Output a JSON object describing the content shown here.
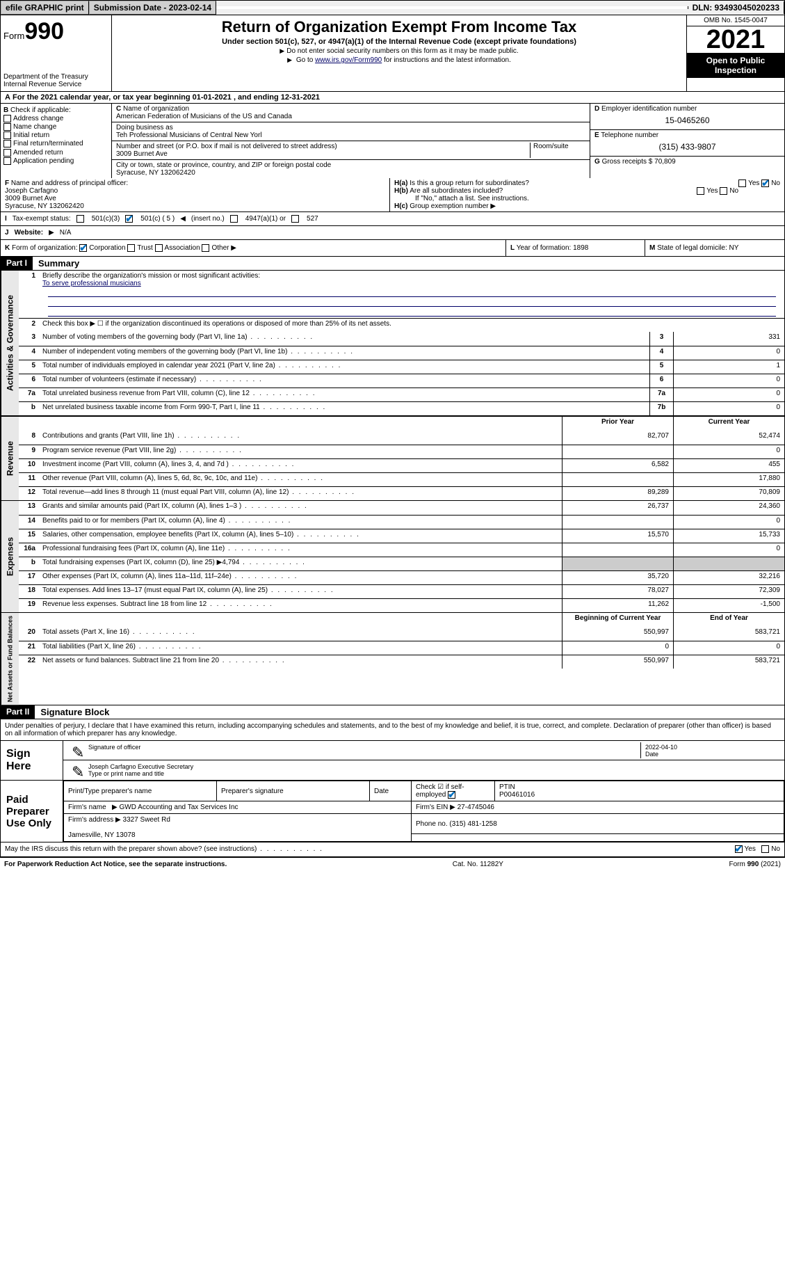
{
  "topbar": {
    "efile": "efile GRAPHIC print",
    "submission_label": "Submission Date - 2023-02-14",
    "dln": "DLN: 93493045020233"
  },
  "header": {
    "form_label": "Form",
    "form_num": "990",
    "title": "Return of Organization Exempt From Income Tax",
    "subtitle": "Under section 501(c), 527, or 4947(a)(1) of the Internal Revenue Code (except private foundations)",
    "note1": "Do not enter social security numbers on this form as it may be made public.",
    "note2_pre": "Go to ",
    "note2_link": "www.irs.gov/Form990",
    "note2_post": " for instructions and the latest information.",
    "dept": "Department of the Treasury",
    "irs": "Internal Revenue Service",
    "omb": "OMB No. 1545-0047",
    "year": "2021",
    "open": "Open to Public Inspection"
  },
  "lineA": "For the 2021 calendar year, or tax year beginning 01-01-2021   , and ending 12-31-2021",
  "checkB": {
    "label": "Check if applicable:",
    "items": [
      "Address change",
      "Name change",
      "Initial return",
      "Final return/terminated",
      "Amended return",
      "Application pending"
    ]
  },
  "org": {
    "name_label": "Name of organization",
    "name": "American Federation of Musicians of the US and Canada",
    "dba_label": "Doing business as",
    "dba": "Teh Professional Musicians of Central New Yorl",
    "addr_label": "Number and street (or P.O. box if mail is not delivered to street address)",
    "room_label": "Room/suite",
    "addr": "3009 Burnet Ave",
    "city_label": "City or town, state or province, country, and ZIP or foreign postal code",
    "city": "Syracuse, NY  132062420"
  },
  "colD": {
    "ein_label": "Employer identification number",
    "ein": "15-0465260",
    "tel_label": "Telephone number",
    "tel": "(315) 433-9807",
    "gross_label": "Gross receipts $",
    "gross": "70,809"
  },
  "rowF": {
    "label": "Name and address of principal officer:",
    "name": "Joseph Carfagno",
    "addr": "3009 Burnet Ave",
    "city": "Syracuse, NY  132062420"
  },
  "rowH": {
    "a": "Is this a group return for subordinates?",
    "b": "Are all subordinates included?",
    "b_note": "If \"No,\" attach a list. See instructions.",
    "c": "Group exemption number"
  },
  "rowI": {
    "label": "Tax-exempt status:",
    "opts": [
      "501(c)(3)",
      "501(c) ( 5 )",
      "(insert no.)",
      "4947(a)(1) or",
      "527"
    ]
  },
  "rowJ": {
    "label": "Website:",
    "val": "N/A"
  },
  "rowK": {
    "label": "Form of organization:",
    "opts": [
      "Corporation",
      "Trust",
      "Association",
      "Other"
    ]
  },
  "rowL": {
    "label": "Year of formation:",
    "val": "1898"
  },
  "rowM": {
    "label": "State of legal domicile:",
    "val": "NY"
  },
  "part1": {
    "hdr": "Part I",
    "title": "Summary",
    "q1": "Briefly describe the organization's mission or most significant activities:",
    "mission": "To serve professional musicians",
    "q2": "Check this box ▶ ☐  if the organization discontinued its operations or disposed of more than 25% of its net assets.",
    "lines_gov": [
      {
        "n": "3",
        "t": "Number of voting members of the governing body (Part VI, line 1a)",
        "box": "3",
        "v": "331"
      },
      {
        "n": "4",
        "t": "Number of independent voting members of the governing body (Part VI, line 1b)",
        "box": "4",
        "v": "0"
      },
      {
        "n": "5",
        "t": "Total number of individuals employed in calendar year 2021 (Part V, line 2a)",
        "box": "5",
        "v": "1"
      },
      {
        "n": "6",
        "t": "Total number of volunteers (estimate if necessary)",
        "box": "6",
        "v": "0"
      },
      {
        "n": "7a",
        "t": "Total unrelated business revenue from Part VIII, column (C), line 12",
        "box": "7a",
        "v": "0"
      },
      {
        "n": "b",
        "t": "Net unrelated business taxable income from Form 990-T, Part I, line 11",
        "box": "7b",
        "v": "0"
      }
    ],
    "col_prior": "Prior Year",
    "col_curr": "Current Year",
    "lines_rev": [
      {
        "n": "8",
        "t": "Contributions and grants (Part VIII, line 1h)",
        "p": "82,707",
        "c": "52,474"
      },
      {
        "n": "9",
        "t": "Program service revenue (Part VIII, line 2g)",
        "p": "",
        "c": "0"
      },
      {
        "n": "10",
        "t": "Investment income (Part VIII, column (A), lines 3, 4, and 7d )",
        "p": "6,582",
        "c": "455"
      },
      {
        "n": "11",
        "t": "Other revenue (Part VIII, column (A), lines 5, 6d, 8c, 9c, 10c, and 11e)",
        "p": "",
        "c": "17,880"
      },
      {
        "n": "12",
        "t": "Total revenue—add lines 8 through 11 (must equal Part VIII, column (A), line 12)",
        "p": "89,289",
        "c": "70,809"
      }
    ],
    "lines_exp": [
      {
        "n": "13",
        "t": "Grants and similar amounts paid (Part IX, column (A), lines 1–3 )",
        "p": "26,737",
        "c": "24,360"
      },
      {
        "n": "14",
        "t": "Benefits paid to or for members (Part IX, column (A), line 4)",
        "p": "",
        "c": "0"
      },
      {
        "n": "15",
        "t": "Salaries, other compensation, employee benefits (Part IX, column (A), lines 5–10)",
        "p": "15,570",
        "c": "15,733"
      },
      {
        "n": "16a",
        "t": "Professional fundraising fees (Part IX, column (A), line 11e)",
        "p": "",
        "c": "0"
      },
      {
        "n": "b",
        "t": "Total fundraising expenses (Part IX, column (D), line 25) ▶4,794",
        "p": "__shade__",
        "c": "__shade__"
      },
      {
        "n": "17",
        "t": "Other expenses (Part IX, column (A), lines 11a–11d, 11f–24e)",
        "p": "35,720",
        "c": "32,216"
      },
      {
        "n": "18",
        "t": "Total expenses. Add lines 13–17 (must equal Part IX, column (A), line 25)",
        "p": "78,027",
        "c": "72,309"
      },
      {
        "n": "19",
        "t": "Revenue less expenses. Subtract line 18 from line 12",
        "p": "11,262",
        "c": "-1,500"
      }
    ],
    "col_begin": "Beginning of Current Year",
    "col_end": "End of Year",
    "lines_net": [
      {
        "n": "20",
        "t": "Total assets (Part X, line 16)",
        "p": "550,997",
        "c": "583,721"
      },
      {
        "n": "21",
        "t": "Total liabilities (Part X, line 26)",
        "p": "0",
        "c": "0"
      },
      {
        "n": "22",
        "t": "Net assets or fund balances. Subtract line 21 from line 20",
        "p": "550,997",
        "c": "583,721"
      }
    ],
    "side_gov": "Activities & Governance",
    "side_rev": "Revenue",
    "side_exp": "Expenses",
    "side_net": "Net Assets or Fund Balances"
  },
  "part2": {
    "hdr": "Part II",
    "title": "Signature Block",
    "decl": "Under penalties of perjury, I declare that I have examined this return, including accompanying schedules and statements, and to the best of my knowledge and belief, it is true, correct, and complete. Declaration of preparer (other than officer) is based on all information of which preparer has any knowledge.",
    "sign_here": "Sign Here",
    "sig_officer": "Signature of officer",
    "sig_date": "2022-04-10",
    "date_lbl": "Date",
    "officer_name": "Joseph Carfagno  Executive Secretary",
    "type_name": "Type or print name and title",
    "paid_prep": "Paid Preparer Use Only",
    "prep_hdr": [
      "Print/Type preparer's name",
      "Preparer's signature",
      "Date",
      "",
      "PTIN"
    ],
    "prep_check": "Check ☑ if self-employed",
    "ptin": "P00461016",
    "firm_name_lbl": "Firm's name",
    "firm_name": "GWD Accounting and Tax Services Inc",
    "firm_ein_lbl": "Firm's EIN",
    "firm_ein": "27-4745046",
    "firm_addr_lbl": "Firm's address",
    "firm_addr": "3327 Sweet Rd",
    "firm_city": "Jamesville, NY  13078",
    "firm_phone_lbl": "Phone no.",
    "firm_phone": "(315) 481-1258",
    "may_irs": "May the IRS discuss this return with the preparer shown above? (see instructions)"
  },
  "footer": {
    "pra": "For Paperwork Reduction Act Notice, see the separate instructions.",
    "cat": "Cat. No. 11282Y",
    "form": "Form 990 (2021)"
  }
}
